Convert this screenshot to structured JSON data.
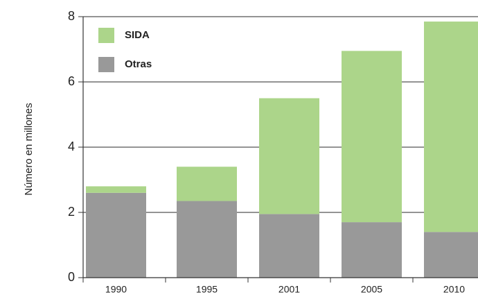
{
  "chart_data": {
    "type": "stacked_bar",
    "y_label": "Número en millones",
    "categories": [
      "1990",
      "1995",
      "2001",
      "2005",
      "2010"
    ],
    "series": [
      {
        "name": "Otras",
        "color": "#999999",
        "values": [
          2.6,
          2.35,
          1.95,
          1.7,
          1.4
        ]
      },
      {
        "name": "SIDA",
        "color": "#acd58a",
        "values": [
          0.2,
          1.05,
          3.55,
          5.25,
          6.45
        ]
      }
    ],
    "ylim": [
      0,
      8
    ],
    "yticks": [
      0,
      2,
      4,
      6,
      8
    ],
    "grid": true,
    "legend": "upper left"
  }
}
